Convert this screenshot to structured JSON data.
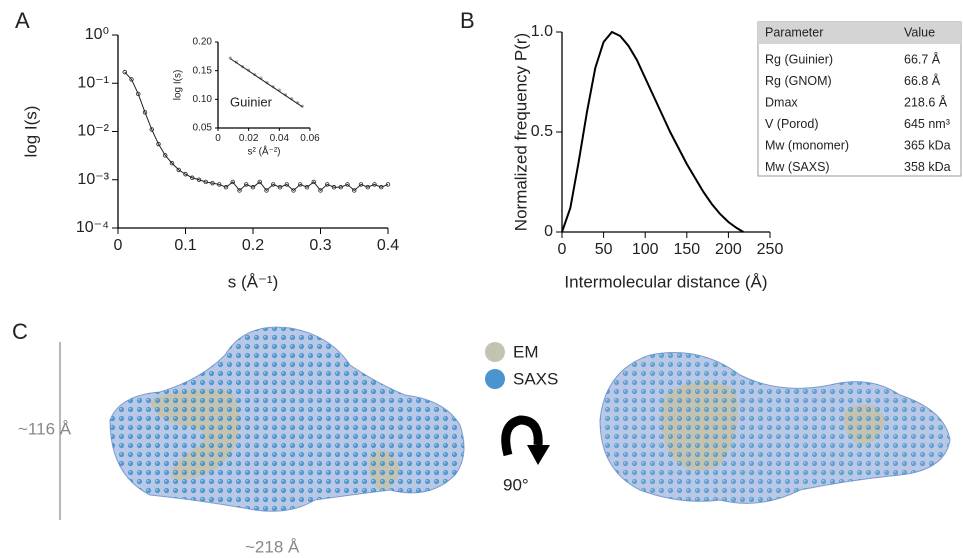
{
  "panels": [
    "A",
    "B",
    "C"
  ],
  "chart_data": [
    {
      "type": "line",
      "y_label": "log I(s)",
      "x_label": "s (Å⁻¹)",
      "log_y": true,
      "color": "#222",
      "markers": true,
      "x": [
        0.01,
        0.02,
        0.03,
        0.04,
        0.05,
        0.06,
        0.07,
        0.08,
        0.09,
        0.1,
        0.11,
        0.12,
        0.13,
        0.14,
        0.15,
        0.16,
        0.17,
        0.18,
        0.19,
        0.2,
        0.21,
        0.22,
        0.23,
        0.24,
        0.25,
        0.26,
        0.27,
        0.28,
        0.29,
        0.3,
        0.31,
        0.32,
        0.33,
        0.34,
        0.35,
        0.36,
        0.37,
        0.38,
        0.39,
        0.4
      ],
      "values": [
        0.17,
        0.12,
        0.06,
        0.025,
        0.011,
        0.0055,
        0.0032,
        0.0022,
        0.0016,
        0.0013,
        0.0011,
        0.001,
        0.0009,
        0.00085,
        0.0008,
        0.0007,
        0.0009,
        0.0006,
        0.0008,
        0.0007,
        0.0009,
        0.0006,
        0.0008,
        0.0007,
        0.0008,
        0.0006,
        0.0008,
        0.0007,
        0.0009,
        0.0006,
        0.0008,
        0.0007,
        0.0007,
        0.0008,
        0.0006,
        0.0008,
        0.0007,
        0.0008,
        0.0007,
        0.0008
      ],
      "xlim": [
        0,
        0.4
      ],
      "xticks": [
        0,
        0.1,
        0.2,
        0.3,
        0.4
      ],
      "ylim": [
        0.0001,
        1
      ],
      "yticks": [
        {
          "value": 1,
          "label": "10⁰"
        },
        {
          "value": 0.1,
          "label": "10⁻¹"
        },
        {
          "value": 0.01,
          "label": "10⁻²"
        },
        {
          "value": 0.001,
          "label": "10⁻³"
        },
        {
          "value": 0.0001,
          "label": "10⁻⁴"
        }
      ]
    },
    {
      "type": "scatter",
      "y_label": "log I(s)",
      "x_label": "s² (Å⁻²)",
      "annotation": "Guinier",
      "color": "#aaa",
      "x": [
        0.008,
        0.012,
        0.016,
        0.02,
        0.024,
        0.028,
        0.032,
        0.036,
        0.04,
        0.044,
        0.048,
        0.052,
        0.055
      ],
      "values": [
        0.172,
        0.165,
        0.157,
        0.151,
        0.143,
        0.137,
        0.129,
        0.122,
        0.116,
        0.108,
        0.101,
        0.094,
        0.088
      ],
      "fit": {
        "color": "#222",
        "x": [
          0.008,
          0.055
        ],
        "values": [
          0.171,
          0.087
        ]
      },
      "xlim": [
        0,
        0.06
      ],
      "xticks": [
        0,
        0.02,
        0.04,
        0.06
      ],
      "ylim": [
        0.05,
        0.2
      ],
      "yticks": [
        0.05,
        {
          "value": 0.1,
          "label": "0.10"
        },
        0.15,
        {
          "value": 0.2,
          "label": "0.20"
        }
      ]
    },
    {
      "type": "line",
      "y_label": "Normalized frequency P(r)",
      "x_label": "Intermolecular distance (Å)",
      "color": "#000",
      "x": [
        0,
        10,
        20,
        30,
        40,
        50,
        60,
        70,
        80,
        90,
        100,
        110,
        120,
        130,
        140,
        150,
        160,
        170,
        180,
        190,
        200,
        210,
        218
      ],
      "values": [
        0,
        0.12,
        0.35,
        0.6,
        0.82,
        0.95,
        1.0,
        0.98,
        0.93,
        0.86,
        0.77,
        0.68,
        0.59,
        0.5,
        0.42,
        0.34,
        0.27,
        0.2,
        0.14,
        0.09,
        0.05,
        0.02,
        0
      ],
      "xlim": [
        0,
        250
      ],
      "xticks": [
        0,
        50,
        100,
        150,
        200,
        250
      ],
      "ylim": [
        0,
        1
      ],
      "yticks": [
        0,
        0.5,
        {
          "value": 1,
          "label": "1.0"
        }
      ]
    }
  ],
  "table": {
    "header": [
      "Parameter",
      "Value"
    ],
    "rows": [
      [
        "Rg (Guinier)",
        "66.7 Å"
      ],
      [
        "Rg (GNOM)",
        "66.8 Å"
      ],
      [
        "Dmax",
        "218.6 Å"
      ],
      [
        "V (Porod)",
        "645 nm³"
      ],
      [
        "Mw (monomer)",
        "365 kDa"
      ],
      [
        "Mw (SAXS)",
        "358 kDa"
      ]
    ]
  },
  "models": {
    "legend": [
      "EM",
      "SAXS"
    ],
    "height_label": "~116 Å",
    "width_label": "~218 Å",
    "rotation_label": "90°"
  }
}
